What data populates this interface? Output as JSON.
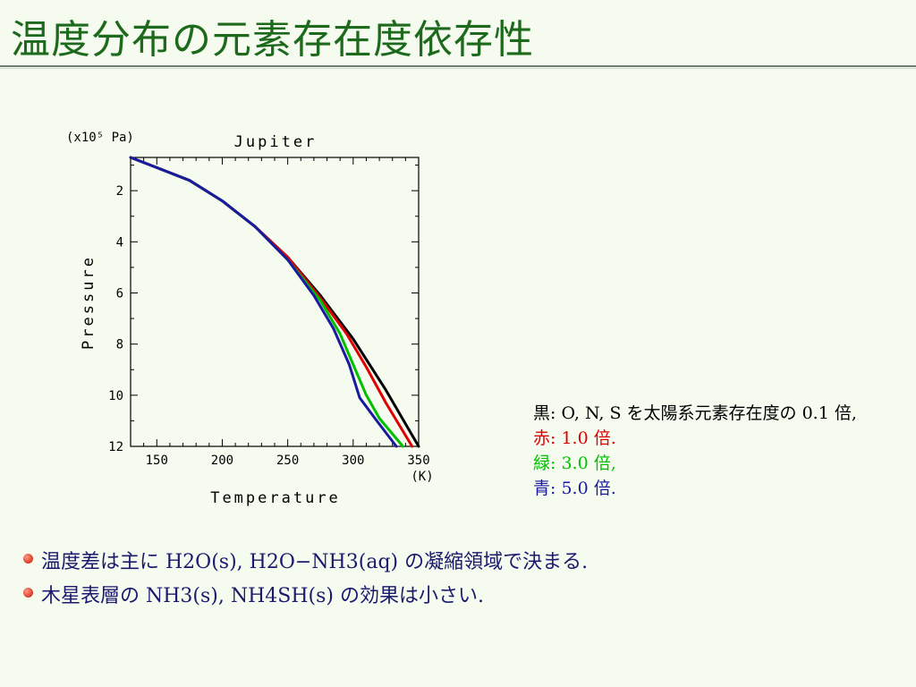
{
  "slide": {
    "title": "温度分布の元素存在度依存性"
  },
  "legend": [
    {
      "label": "黒: O, N, S を太陽系元素存在度の 0.1 倍,",
      "color": "#000000"
    },
    {
      "label": "赤: 1.0 倍.",
      "color": "#e00000"
    },
    {
      "label": "緑: 3.0 倍,",
      "color": "#00c000"
    },
    {
      "label": "青: 5.0 倍.",
      "color": "#1a1aa0"
    }
  ],
  "bullets": [
    "温度差は主に H2O(s), H2O−NH3(aq) の凝縮領域で決まる.",
    "木星表層の NH3(s), NH4SH(s) の効果は小さい."
  ],
  "chart_data": {
    "type": "line",
    "title": "Jupiter",
    "xlabel": "Temperature",
    "ylabel": "Pressure",
    "x_unit_label": "(K)",
    "y_unit_label": "(x10⁵ Pa)",
    "xlim": [
      130,
      350
    ],
    "ylim": [
      0.7,
      12
    ],
    "y_inverted": true,
    "xticks": [
      150,
      200,
      250,
      300,
      350
    ],
    "yticks": [
      2,
      4,
      6,
      8,
      10,
      12
    ],
    "series": [
      {
        "name": "0.1倍",
        "color": "#000000",
        "points": [
          [
            130,
            0.7
          ],
          [
            150,
            1.1
          ],
          [
            175,
            1.6
          ],
          [
            200,
            2.4
          ],
          [
            225,
            3.4
          ],
          [
            250,
            4.6
          ],
          [
            275,
            6.1
          ],
          [
            300,
            7.8
          ],
          [
            325,
            9.8
          ],
          [
            350,
            12
          ]
        ]
      },
      {
        "name": "1.0倍",
        "color": "#e00000",
        "points": [
          [
            130,
            0.7
          ],
          [
            150,
            1.1
          ],
          [
            175,
            1.6
          ],
          [
            200,
            2.4
          ],
          [
            225,
            3.4
          ],
          [
            250,
            4.6
          ],
          [
            275,
            6.2
          ],
          [
            295,
            7.6
          ],
          [
            310,
            8.9
          ],
          [
            325,
            10.3
          ],
          [
            345,
            12
          ]
        ]
      },
      {
        "name": "3.0倍",
        "color": "#00c000",
        "points": [
          [
            130,
            0.7
          ],
          [
            150,
            1.1
          ],
          [
            175,
            1.6
          ],
          [
            200,
            2.4
          ],
          [
            225,
            3.4
          ],
          [
            250,
            4.7
          ],
          [
            275,
            6.3
          ],
          [
            290,
            7.6
          ],
          [
            300,
            8.8
          ],
          [
            310,
            10.0
          ],
          [
            320,
            10.9
          ],
          [
            338,
            12
          ]
        ]
      },
      {
        "name": "5.0倍",
        "color": "#1a1aa0",
        "points": [
          [
            130,
            0.7
          ],
          [
            150,
            1.1
          ],
          [
            175,
            1.6
          ],
          [
            200,
            2.4
          ],
          [
            225,
            3.4
          ],
          [
            250,
            4.7
          ],
          [
            270,
            6.1
          ],
          [
            285,
            7.4
          ],
          [
            297,
            8.8
          ],
          [
            305,
            10.1
          ],
          [
            318,
            11.0
          ],
          [
            333,
            12
          ]
        ]
      }
    ]
  }
}
